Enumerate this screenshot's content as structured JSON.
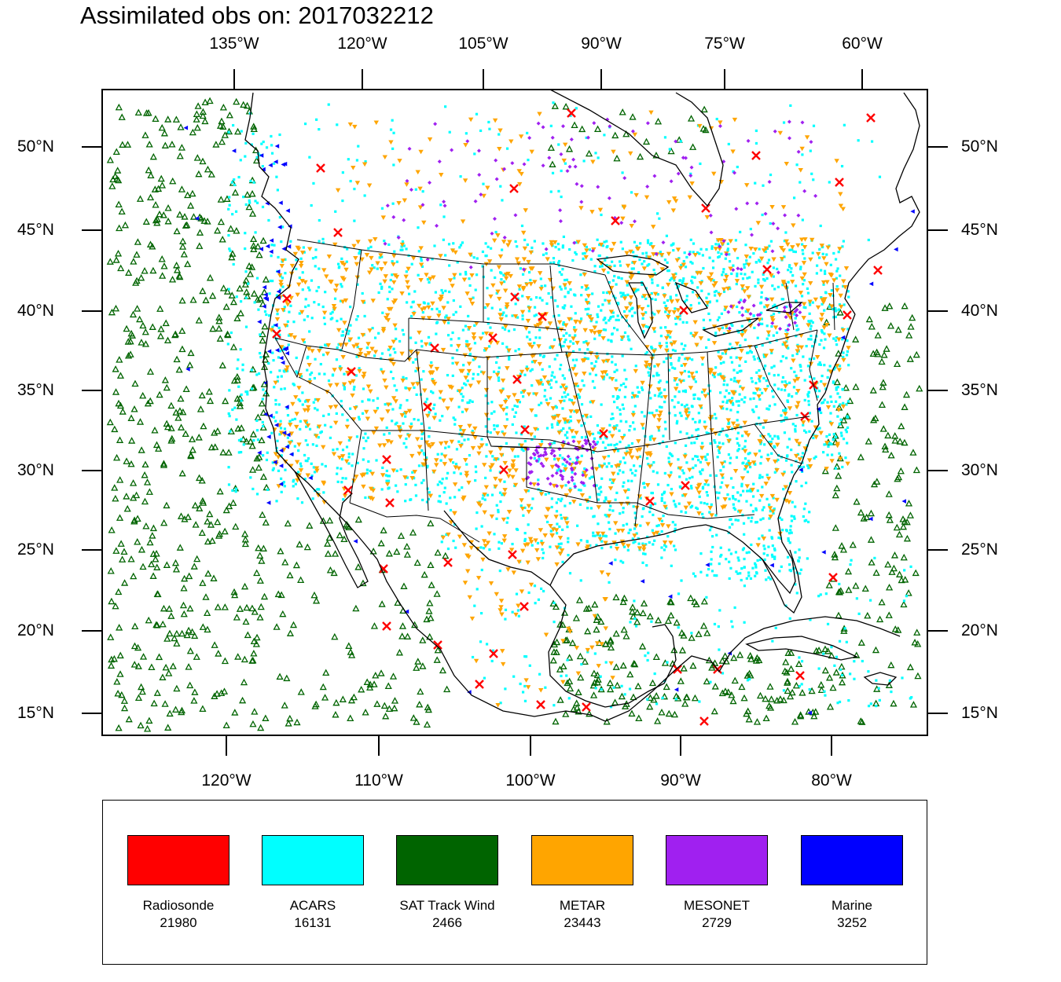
{
  "title": "Assimilated obs on: 2017032212",
  "axes": {
    "top_lon": [
      "135°W",
      "120°W",
      "105°W",
      "90°W",
      "75°W",
      "60°W"
    ],
    "bottom_lon": [
      "120°W",
      "110°W",
      "100°W",
      "90°W",
      "80°W"
    ],
    "lat": [
      "50°N",
      "45°N",
      "40°N",
      "35°N",
      "30°N",
      "25°N",
      "20°N",
      "15°N"
    ]
  },
  "map_icons": {
    "coastline": "coastline-outline",
    "state_borders": "state-border-outline"
  },
  "legend": [
    {
      "label": "Radiosonde",
      "count": "21980",
      "color": "#ff0000",
      "marker": "x-mark"
    },
    {
      "label": "ACARS",
      "count": "16131",
      "color": "#00ffff",
      "marker": "square-dot"
    },
    {
      "label": "SAT Track Wind",
      "count": "2466",
      "color": "#006400",
      "marker": "triangle-up"
    },
    {
      "label": "METAR",
      "count": "23443",
      "color": "#ffa500",
      "marker": "triangle-down"
    },
    {
      "label": "MESONET",
      "count": "2729",
      "color": "#a020f0",
      "marker": "diamond"
    },
    {
      "label": "Marine",
      "count": "3252",
      "color": "#0000ff",
      "marker": "triangle-left"
    }
  ]
}
